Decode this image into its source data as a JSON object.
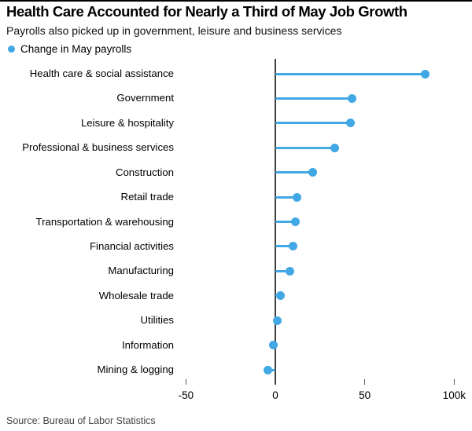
{
  "chart_data": {
    "type": "bar",
    "variant": "horizontal-lollipop",
    "title": "Health Care Accounted for Nearly a Third of May Job Growth",
    "subtitle": "Payrolls also picked up in government, leisure and business services",
    "series_name": "Change in May payrolls",
    "unit": "thousands of jobs (k)",
    "categories": [
      "Health care & social assistance",
      "Government",
      "Leisure & hospitality",
      "Professional & business services",
      "Construction",
      "Retail trade",
      "Transportation & warehousing",
      "Financial activities",
      "Manufacturing",
      "Wholesale trade",
      "Utilities",
      "Information",
      "Mining & logging"
    ],
    "values": [
      84,
      43,
      42,
      33,
      21,
      12,
      11,
      10,
      8,
      3,
      1,
      -1,
      -4
    ],
    "x_axis": {
      "min": -60,
      "max": 105,
      "ticks": [
        {
          "value": -50,
          "label": "-50"
        },
        {
          "value": 0,
          "label": "0"
        },
        {
          "value": 50,
          "label": "50"
        },
        {
          "value": 100,
          "label": "100k"
        }
      ]
    },
    "legend_position": "top-left",
    "grid": false,
    "colors": {
      "marker": "#42a7e5",
      "axis": "#3f3f3f",
      "tick": "#5a5a5a",
      "title": "#000000",
      "source": "#444444"
    }
  },
  "footer": {
    "source": "Source: Bureau of Labor Statistics"
  }
}
